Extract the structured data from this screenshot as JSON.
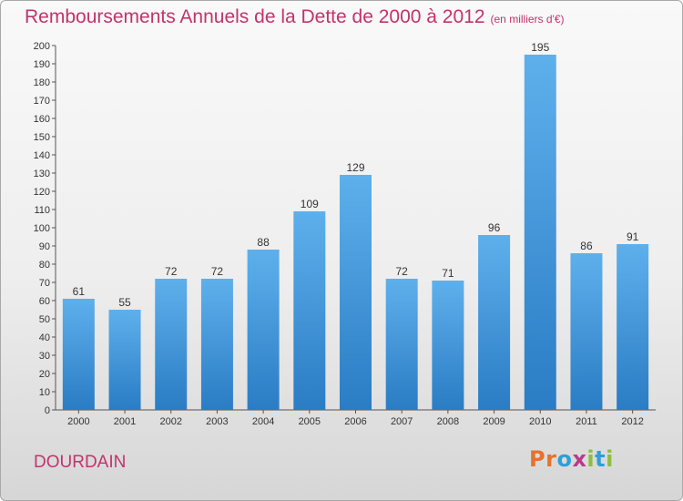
{
  "header": {
    "title": "Remboursements Annuels de la Dette de 2000 à 2012",
    "unit": "(en milliers d'€)"
  },
  "footer": {
    "commune": "DOURDAIN",
    "logo_letters": [
      "P",
      "r",
      "o",
      "x",
      "i",
      "t",
      "i"
    ],
    "logo_colors": [
      "#e8712b",
      "#e8712b",
      "#2e9fd8",
      "#b83a8c",
      "#8cbf3f",
      "#2e9fd8",
      "#8cbf3f"
    ]
  },
  "colors": {
    "bar_light": "#5eb0ec",
    "bar_dark": "#2a7cc4",
    "title": "#c2336b"
  },
  "chart_data": {
    "type": "bar",
    "title": "Remboursements Annuels de la Dette de 2000 à 2012",
    "categories": [
      "2000",
      "2001",
      "2002",
      "2003",
      "2004",
      "2005",
      "2006",
      "2007",
      "2008",
      "2009",
      "2010",
      "2011",
      "2012"
    ],
    "values": [
      61,
      55,
      72,
      72,
      88,
      109,
      129,
      72,
      71,
      96,
      195,
      86,
      91
    ],
    "ylim": [
      0,
      200
    ],
    "ytick_step": 10,
    "grid": false,
    "data_labels": true
  }
}
